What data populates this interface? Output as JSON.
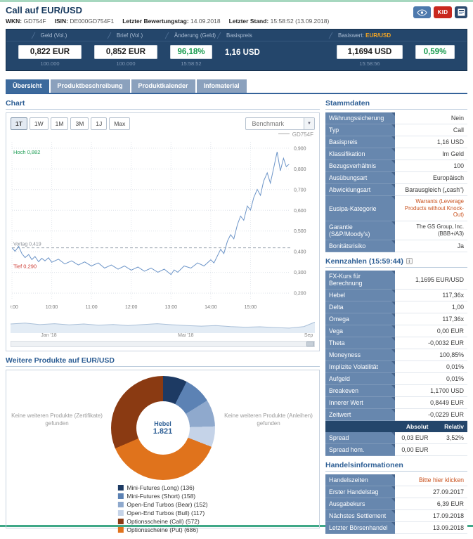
{
  "page": {
    "title": "Call auf EUR/USD",
    "meta": [
      {
        "label": "WKN:",
        "value": "GD754F"
      },
      {
        "label": "ISIN:",
        "value": "DE000GD754F1"
      },
      {
        "label": "Letzter Bewertungstag:",
        "value": "14.09.2018"
      },
      {
        "label": "Letzter Stand:",
        "value": "15:58:52 (13.09.2018)"
      }
    ],
    "icons": {
      "kid_label": "KID"
    }
  },
  "colors": {
    "navy_bar": "#24466b",
    "accent_green": "#159a4c",
    "underlying_orange": "#f5a623",
    "link_orange": "#c9511d",
    "label_cell_blue": "#6787ae",
    "active_tab_blue": "#3c6a9c"
  },
  "price_bar": {
    "geld": {
      "header": "Geld (Vol.)",
      "value": "0,822 EUR",
      "sub": "100.000"
    },
    "brief": {
      "header": "Brief (Vol.)",
      "value": "0,852 EUR",
      "sub": "100.000"
    },
    "aenderung": {
      "header": "Änderung (Geld)",
      "value": "96,18%",
      "sub": "15:58:52"
    },
    "basispreis": {
      "header": "Basispreis",
      "value": "1,16 USD"
    },
    "basiswert": {
      "header_label": "Basiswert:",
      "header_value": "EUR/USD",
      "price": "1,1694 USD",
      "price_sub": "15:58:56",
      "change": "0,59%"
    }
  },
  "tabs": [
    {
      "label": "Übersicht",
      "active": true
    },
    {
      "label": "Produktbeschreibung",
      "active": false
    },
    {
      "label": "Produktkalender",
      "active": false
    },
    {
      "label": "Infomaterial",
      "active": false
    }
  ],
  "chart_section": {
    "heading": "Chart",
    "ranges": [
      "1T",
      "1W",
      "1M",
      "3M",
      "1J",
      "Max"
    ],
    "active_range": "1T",
    "benchmark_label": "Benchmark",
    "legend": "GD754F",
    "hoch_label": "Hoch 0,882",
    "tief_label": "Tief 0,290",
    "vortag_label": "Vortag 0,419"
  },
  "chart_data": [
    {
      "type": "line",
      "name": "GD754F",
      "color": "#6d95c8",
      "x_range": [
        9,
        16
      ],
      "ylim": [
        0.2,
        0.9
      ],
      "ytick_values": [
        0.9,
        0.8,
        0.7,
        0.6,
        0.5,
        0.4,
        0.3,
        0.2
      ],
      "xticks": [
        "09:00",
        "10:00",
        "11:00",
        "12:00",
        "13:00",
        "14:00",
        "15:00"
      ],
      "high": 0.882,
      "low": 0.29,
      "previous_close": 0.419,
      "points": [
        [
          9.0,
          0.419
        ],
        [
          9.08,
          0.402
        ],
        [
          9.17,
          0.426
        ],
        [
          9.25,
          0.391
        ],
        [
          9.33,
          0.372
        ],
        [
          9.42,
          0.386
        ],
        [
          9.5,
          0.362
        ],
        [
          9.58,
          0.377
        ],
        [
          9.67,
          0.352
        ],
        [
          9.75,
          0.368
        ],
        [
          9.83,
          0.356
        ],
        [
          9.92,
          0.371
        ],
        [
          10.0,
          0.349
        ],
        [
          10.17,
          0.364
        ],
        [
          10.33,
          0.341
        ],
        [
          10.5,
          0.356
        ],
        [
          10.67,
          0.336
        ],
        [
          10.83,
          0.351
        ],
        [
          11.0,
          0.331
        ],
        [
          11.17,
          0.346
        ],
        [
          11.33,
          0.321
        ],
        [
          11.5,
          0.336
        ],
        [
          11.67,
          0.316
        ],
        [
          11.83,
          0.331
        ],
        [
          12.0,
          0.311
        ],
        [
          12.17,
          0.326
        ],
        [
          12.33,
          0.306
        ],
        [
          12.5,
          0.321
        ],
        [
          12.67,
          0.301
        ],
        [
          12.83,
          0.316
        ],
        [
          13.0,
          0.29
        ],
        [
          13.08,
          0.312
        ],
        [
          13.17,
          0.301
        ],
        [
          13.33,
          0.331
        ],
        [
          13.5,
          0.321
        ],
        [
          13.67,
          0.346
        ],
        [
          13.83,
          0.331
        ],
        [
          14.0,
          0.361
        ],
        [
          14.08,
          0.346
        ],
        [
          14.17,
          0.381
        ],
        [
          14.25,
          0.412
        ],
        [
          14.33,
          0.391
        ],
        [
          14.42,
          0.451
        ],
        [
          14.5,
          0.482
        ],
        [
          14.58,
          0.462
        ],
        [
          14.67,
          0.531
        ],
        [
          14.75,
          0.572
        ],
        [
          14.83,
          0.552
        ],
        [
          14.92,
          0.621
        ],
        [
          15.0,
          0.601
        ],
        [
          15.08,
          0.661
        ],
        [
          15.17,
          0.701
        ],
        [
          15.25,
          0.672
        ],
        [
          15.33,
          0.741
        ],
        [
          15.42,
          0.781
        ],
        [
          15.5,
          0.731
        ],
        [
          15.58,
          0.801
        ],
        [
          15.67,
          0.882
        ],
        [
          15.75,
          0.791
        ],
        [
          15.83,
          0.851
        ],
        [
          15.9,
          0.811
        ],
        [
          15.97,
          0.822
        ]
      ]
    },
    {
      "type": "area",
      "name": "GD754F Historie",
      "fill": "#e3ecf5",
      "stroke": "#a9bfd8",
      "x_range": [
        0,
        8.3
      ],
      "xticks": [
        {
          "pos": 0.1,
          "label": "Jan '18"
        },
        {
          "pos": 0.55,
          "label": "Mai '18"
        },
        {
          "pos": 0.965,
          "label": "Sep"
        }
      ],
      "points": [
        [
          0,
          0.5
        ],
        [
          0.4,
          0.56
        ],
        [
          0.8,
          0.46
        ],
        [
          1.2,
          0.52
        ],
        [
          1.6,
          0.44
        ],
        [
          2.0,
          0.5
        ],
        [
          2.4,
          0.42
        ],
        [
          2.8,
          0.47
        ],
        [
          3.2,
          0.4
        ],
        [
          3.6,
          0.46
        ],
        [
          4.0,
          0.52
        ],
        [
          4.4,
          0.45
        ],
        [
          4.8,
          0.4
        ],
        [
          5.2,
          0.36
        ],
        [
          5.6,
          0.4
        ],
        [
          6.0,
          0.33
        ],
        [
          6.4,
          0.29
        ],
        [
          6.8,
          0.32
        ],
        [
          7.2,
          0.27
        ],
        [
          7.6,
          0.23
        ],
        [
          8.0,
          0.33
        ],
        [
          8.3,
          0.62
        ]
      ]
    },
    {
      "type": "pie",
      "donut": true,
      "center_label": "Hebel",
      "center_value": "1.821",
      "total": 1821,
      "draw_order": [
        "long",
        "short",
        "bear",
        "bull",
        "put",
        "call"
      ],
      "legend_order": [
        "long",
        "short",
        "bear",
        "bull",
        "call",
        "put"
      ],
      "slices": {
        "long": {
          "label": "Mini-Futures (Long)",
          "count": 136,
          "color": "#1d3a63"
        },
        "short": {
          "label": "Mini-Futures (Short)",
          "count": 158,
          "color": "#5c82b4"
        },
        "bear": {
          "label": "Open-End Turbos (Bear)",
          "count": 152,
          "color": "#8fa9cd"
        },
        "bull": {
          "label": "Open-End Turbos (Bull)",
          "count": 117,
          "color": "#c5d3e8"
        },
        "call": {
          "label": "Optionsscheine (Call)",
          "count": 572,
          "color": "#8a3a12"
        },
        "put": {
          "label": "Optionsscheine (Put)",
          "count": 686,
          "color": "#e0731c"
        }
      }
    }
  ],
  "weitere": {
    "heading": "Weitere Produkte auf EUR/USD",
    "left_note": "Keine weiteren Produkte (Zertifikate) gefunden",
    "right_note": "Keine weiteren Produkte (Anleihen) gefunden"
  },
  "stammdaten": {
    "heading": "Stammdaten",
    "rows": [
      {
        "label": "Währungssicherung",
        "value": "Nein"
      },
      {
        "label": "Typ",
        "value": "Call"
      },
      {
        "label": "Basispreis",
        "value": "1,16 USD"
      },
      {
        "label": "Klassifikation",
        "value": "Im Geld"
      },
      {
        "label": "Bezugsverhältnis",
        "value": "100"
      },
      {
        "label": "Ausübungsart",
        "value": "Europäisch"
      },
      {
        "label": "Abwicklungsart",
        "value": "Barausgleich („cash“)"
      },
      {
        "label": "Eusipa-Kategorie",
        "value": "Warrants (Leverage Products without Knock-Out)",
        "small": true,
        "link": true
      },
      {
        "label": "Garantie (S&P/Moody's)",
        "value": "The GS Group, Inc. (BBB+/A3)",
        "small": true
      },
      {
        "label": "Bonitätsrisiko",
        "value": "Ja"
      }
    ]
  },
  "kennzahlen": {
    "heading": "Kennzahlen",
    "timestamp": "(15:59:44)",
    "rows": [
      {
        "label": "FX-Kurs für Berechnung",
        "value": "1,1695 EUR/USD"
      },
      {
        "label": "Hebel",
        "value": "117,36x"
      },
      {
        "label": "Delta",
        "value": "1,00"
      },
      {
        "label": "Omega",
        "value": "117,36x"
      },
      {
        "label": "Vega",
        "value": "0,00 EUR"
      },
      {
        "label": "Theta",
        "value": "-0,0032 EUR"
      },
      {
        "label": "Moneyness",
        "value": "100,85%"
      },
      {
        "label": "Implizite Volatilität",
        "value": "0,01%"
      },
      {
        "label": "Aufgeld",
        "value": "0,01%"
      },
      {
        "label": "Breakeven",
        "value": "1,1700 USD"
      },
      {
        "label": "Innerer Wert",
        "value": "0,8449 EUR"
      },
      {
        "label": "Zeitwert",
        "value": "-0,0229 EUR"
      }
    ],
    "spread_header": {
      "absolut": "Absolut",
      "relativ": "Relativ"
    },
    "spread_rows": [
      {
        "label": "Spread",
        "absolut": "0,03 EUR",
        "relativ": "3,52%"
      },
      {
        "label": "Spread hom.",
        "absolut": "0,00 EUR",
        "relativ": ""
      }
    ]
  },
  "handelsinformationen": {
    "heading": "Handelsinformationen",
    "rows": [
      {
        "label": "Handelszeiten",
        "value": "Bitte hier klicken",
        "link": true
      },
      {
        "label": "Erster Handelstag",
        "value": "27.09.2017"
      },
      {
        "label": "Ausgabekurs",
        "value": "6,39 EUR"
      },
      {
        "label": "Nächstes Settlement",
        "value": "17.09.2018"
      },
      {
        "label": "Letzter Börsenhandel",
        "value": "13.09.2018"
      }
    ]
  }
}
